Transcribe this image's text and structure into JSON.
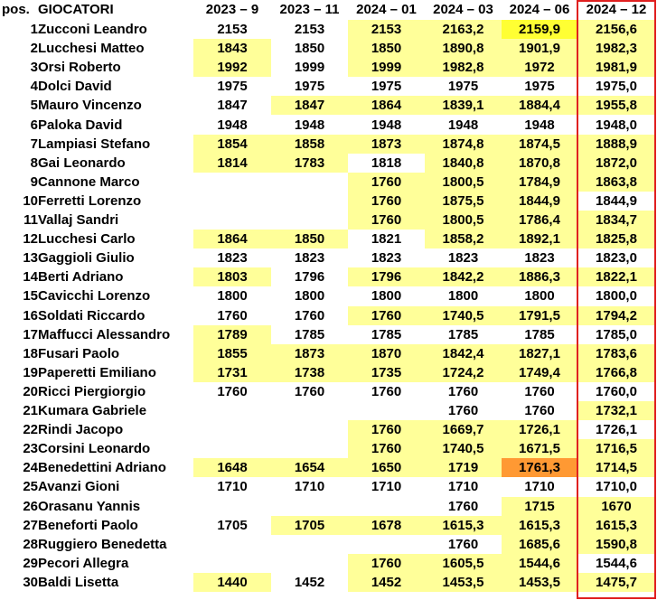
{
  "header": {
    "pos": "pos.",
    "name": "GIOCATORI",
    "periods": [
      "2023 – 9",
      "2023 – 11",
      "2024 – 01",
      "2024 – 03",
      "2024 – 06",
      "2024 – 12"
    ]
  },
  "highlight_colors": {
    "light": "#ffff99",
    "bright": "#ffff33",
    "orange": "#ff9933",
    "frame": "#e02020"
  },
  "rows": [
    {
      "pos": "1",
      "name": "Zucconi Leandro",
      "v": [
        "2153",
        "2153",
        "2153",
        "2163,2",
        "2159,9",
        "2156,6"
      ],
      "h": [
        0,
        0,
        1,
        1,
        2,
        1
      ]
    },
    {
      "pos": "2",
      "name": "Lucchesi Matteo",
      "v": [
        "1843",
        "1850",
        "1850",
        "1890,8",
        "1901,9",
        "1982,3"
      ],
      "h": [
        1,
        0,
        1,
        1,
        1,
        1
      ]
    },
    {
      "pos": "3",
      "name": "Orsi Roberto",
      "v": [
        "1992",
        "1999",
        "1999",
        "1982,8",
        "1972",
        "1981,9"
      ],
      "h": [
        1,
        0,
        1,
        1,
        1,
        1
      ]
    },
    {
      "pos": "4",
      "name": "Dolci David",
      "v": [
        "1975",
        "1975",
        "1975",
        "1975",
        "1975",
        "1975,0"
      ],
      "h": [
        0,
        0,
        0,
        0,
        0,
        0
      ]
    },
    {
      "pos": "5",
      "name": "Mauro Vincenzo",
      "v": [
        "1847",
        "1847",
        "1864",
        "1839,1",
        "1884,4",
        "1955,8"
      ],
      "h": [
        0,
        1,
        1,
        1,
        1,
        1
      ]
    },
    {
      "pos": "6",
      "name": "Paloka David",
      "v": [
        "1948",
        "1948",
        "1948",
        "1948",
        "1948",
        "1948,0"
      ],
      "h": [
        0,
        0,
        0,
        0,
        0,
        0
      ]
    },
    {
      "pos": "7",
      "name": "Lampiasi Stefano",
      "v": [
        "1854",
        "1858",
        "1873",
        "1874,8",
        "1874,5",
        "1888,9"
      ],
      "h": [
        1,
        1,
        1,
        1,
        1,
        1
      ]
    },
    {
      "pos": "8",
      "name": "Gai Leonardo",
      "v": [
        "1814",
        "1783",
        "1818",
        "1840,8",
        "1870,8",
        "1872,0"
      ],
      "h": [
        1,
        1,
        0,
        1,
        1,
        1
      ]
    },
    {
      "pos": "9",
      "name": "Cannone Marco",
      "v": [
        "",
        "",
        "1760",
        "1800,5",
        "1784,9",
        "1863,8"
      ],
      "h": [
        0,
        0,
        1,
        1,
        1,
        1
      ]
    },
    {
      "pos": "10",
      "name": "Ferretti Lorenzo",
      "v": [
        "",
        "",
        "1760",
        "1875,5",
        "1844,9",
        "1844,9"
      ],
      "h": [
        0,
        0,
        1,
        1,
        1,
        0
      ]
    },
    {
      "pos": "11",
      "name": "Vallaj Sandri",
      "v": [
        "",
        "",
        "1760",
        "1800,5",
        "1786,4",
        "1834,7"
      ],
      "h": [
        0,
        0,
        1,
        1,
        1,
        1
      ]
    },
    {
      "pos": "12",
      "name": "Lucchesi Carlo",
      "v": [
        "1864",
        "1850",
        "1821",
        "1858,2",
        "1892,1",
        "1825,8"
      ],
      "h": [
        1,
        1,
        0,
        1,
        1,
        1
      ]
    },
    {
      "pos": "13",
      "name": "Gaggioli Giulio",
      "v": [
        "1823",
        "1823",
        "1823",
        "1823",
        "1823",
        "1823,0"
      ],
      "h": [
        0,
        0,
        0,
        0,
        0,
        0
      ]
    },
    {
      "pos": "14",
      "name": "Berti Adriano",
      "v": [
        "1803",
        "1796",
        "1796",
        "1842,2",
        "1886,3",
        "1822,1"
      ],
      "h": [
        1,
        0,
        1,
        1,
        1,
        1
      ]
    },
    {
      "pos": "15",
      "name": "Cavicchi Lorenzo",
      "v": [
        "1800",
        "1800",
        "1800",
        "1800",
        "1800",
        "1800,0"
      ],
      "h": [
        0,
        0,
        0,
        0,
        0,
        0
      ]
    },
    {
      "pos": "16",
      "name": "Soldati Riccardo",
      "v": [
        "1760",
        "1760",
        "1760",
        "1740,5",
        "1791,5",
        "1794,2"
      ],
      "h": [
        0,
        0,
        1,
        1,
        1,
        1
      ]
    },
    {
      "pos": "17",
      "name": "Maffucci Alessandro",
      "v": [
        "1789",
        "1785",
        "1785",
        "1785",
        "1785",
        "1785,0"
      ],
      "h": [
        1,
        0,
        0,
        0,
        0,
        0
      ]
    },
    {
      "pos": "18",
      "name": "Fusari Paolo",
      "v": [
        "1855",
        "1873",
        "1870",
        "1842,4",
        "1827,1",
        "1783,6"
      ],
      "h": [
        1,
        1,
        1,
        1,
        1,
        1
      ]
    },
    {
      "pos": "19",
      "name": "Paperetti Emiliano",
      "v": [
        "1731",
        "1738",
        "1735",
        "1724,2",
        "1749,4",
        "1766,8"
      ],
      "h": [
        1,
        1,
        1,
        1,
        1,
        1
      ]
    },
    {
      "pos": "20",
      "name": "Ricci Piergiorgio",
      "v": [
        "1760",
        "1760",
        "1760",
        "1760",
        "1760",
        "1760,0"
      ],
      "h": [
        0,
        0,
        0,
        0,
        0,
        0
      ]
    },
    {
      "pos": "21",
      "name": "Kumara Gabriele",
      "v": [
        "",
        "",
        "",
        "1760",
        "1760",
        "1732,1"
      ],
      "h": [
        0,
        0,
        0,
        0,
        0,
        1
      ]
    },
    {
      "pos": "22",
      "name": "Rindi Jacopo",
      "v": [
        "",
        "",
        "1760",
        "1669,7",
        "1726,1",
        "1726,1"
      ],
      "h": [
        0,
        0,
        1,
        1,
        1,
        0
      ]
    },
    {
      "pos": "23",
      "name": "Corsini Leonardo",
      "v": [
        "",
        "",
        "1760",
        "1740,5",
        "1671,5",
        "1716,5"
      ],
      "h": [
        0,
        0,
        1,
        1,
        1,
        1
      ]
    },
    {
      "pos": "24",
      "name": "Benedettini Adriano",
      "v": [
        "1648",
        "1654",
        "1650",
        "1719",
        "1761,3",
        "1714,5"
      ],
      "h": [
        1,
        1,
        1,
        1,
        3,
        1
      ]
    },
    {
      "pos": "25",
      "name": "Avanzi Gioni",
      "v": [
        "1710",
        "1710",
        "1710",
        "1710",
        "1710",
        "1710,0"
      ],
      "h": [
        0,
        0,
        0,
        0,
        0,
        0
      ]
    },
    {
      "pos": "26",
      "name": "Orasanu Yannis",
      "v": [
        "",
        "",
        "",
        "1760",
        "1715",
        "1670"
      ],
      "h": [
        0,
        0,
        0,
        0,
        1,
        1
      ]
    },
    {
      "pos": "27",
      "name": "Beneforti Paolo",
      "v": [
        "1705",
        "1705",
        "1678",
        "1615,3",
        "1615,3",
        "1615,3"
      ],
      "h": [
        0,
        1,
        1,
        1,
        1,
        1
      ]
    },
    {
      "pos": "28",
      "name": "Ruggiero Benedetta",
      "v": [
        "",
        "",
        "",
        "1760",
        "1685,6",
        "1590,8"
      ],
      "h": [
        0,
        0,
        0,
        0,
        1,
        1
      ]
    },
    {
      "pos": "29",
      "name": "Pecori Allegra",
      "v": [
        "",
        "",
        "1760",
        "1605,5",
        "1544,6",
        "1544,6"
      ],
      "h": [
        0,
        0,
        1,
        1,
        1,
        0
      ]
    },
    {
      "pos": "30",
      "name": "Baldi Lisetta",
      "v": [
        "1440",
        "1452",
        "1452",
        "1453,5",
        "1453,5",
        "1475,7"
      ],
      "h": [
        1,
        0,
        1,
        1,
        1,
        1
      ]
    }
  ]
}
